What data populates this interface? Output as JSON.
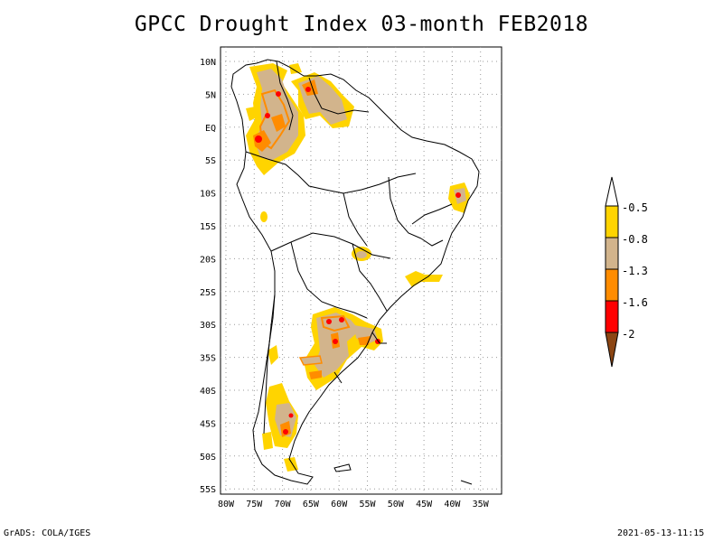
{
  "title": "GPCC Drought Index 03-month FEB2018",
  "footer": {
    "left": "GrADS: COLA/IGES",
    "right": "2021-05-13-11:15"
  },
  "map": {
    "lat_labels": [
      "10N",
      "5N",
      "EQ",
      "5S",
      "10S",
      "15S",
      "20S",
      "25S",
      "30S",
      "35S",
      "40S",
      "45S",
      "50S",
      "55S"
    ],
    "lon_labels": [
      "80W",
      "75W",
      "70W",
      "65W",
      "60W",
      "55W",
      "50W",
      "45W",
      "40W",
      "35W"
    ],
    "grid": true
  },
  "legend": {
    "labels": [
      "-0.5",
      "-0.8",
      "-1.3",
      "-1.6",
      "-2"
    ],
    "colors": {
      "yellow": "#ffd400",
      "tan": "#d2b48c",
      "orange": "#ff8c00",
      "red": "#ff0000",
      "brown": "#8b4513",
      "white": "#ffffff"
    }
  }
}
